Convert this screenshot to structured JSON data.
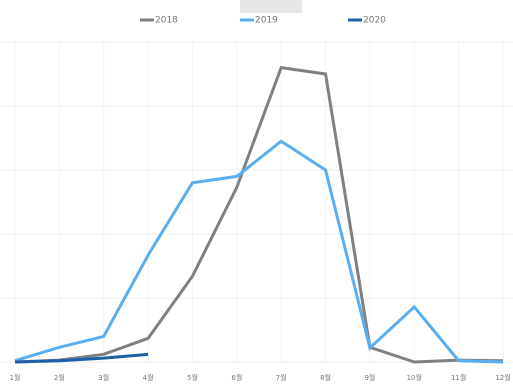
{
  "chart_data": {
    "type": "line",
    "categories": [
      "1월",
      "2월",
      "3월",
      "4월",
      "5월",
      "6월",
      "7월",
      "8월",
      "9월",
      "10월",
      "11월",
      "12월"
    ],
    "series": [
      {
        "name": "2018",
        "color": "#808080",
        "values": [
          0,
          0.03,
          0.12,
          0.37,
          1.34,
          2.73,
          4.6,
          4.5,
          0.23,
          0,
          0.03,
          0.02
        ]
      },
      {
        "name": "2019",
        "color": "#5aaeef",
        "values": [
          0.02,
          0.23,
          0.4,
          1.67,
          2.8,
          2.9,
          3.45,
          3.0,
          0.22,
          0.86,
          0.02,
          0
        ]
      },
      {
        "name": "2020",
        "color": "#1f5fa8",
        "values": [
          0,
          0.02,
          0.06,
          0.12,
          null,
          null,
          null,
          null,
          null,
          null,
          null,
          null
        ]
      }
    ],
    "ylim": [
      0,
      5
    ],
    "yticks": [
      0,
      1,
      2,
      3,
      4,
      5
    ],
    "grid": true,
    "legend": "top"
  }
}
